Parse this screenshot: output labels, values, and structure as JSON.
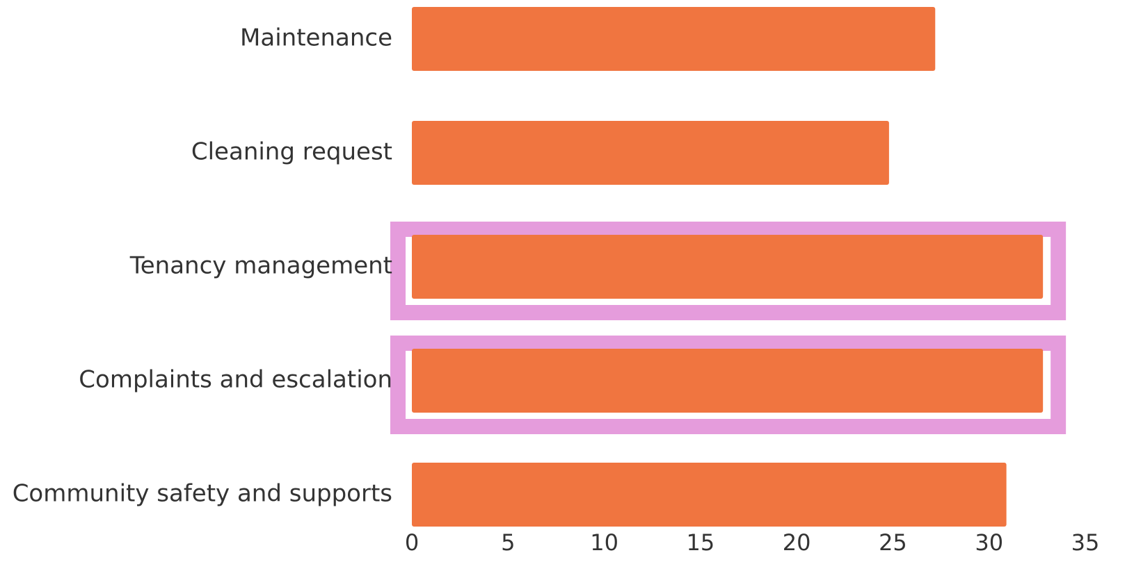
{
  "chart_data": {
    "type": "bar",
    "orientation": "horizontal",
    "categories": [
      "Maintenance",
      "Cleaning request",
      "Tenancy management",
      "Complaints and escalation",
      "Community safety and supports"
    ],
    "values": [
      27.2,
      24.8,
      32.8,
      32.8,
      30.9
    ],
    "highlighted": [
      false,
      false,
      true,
      true,
      false
    ],
    "xlim": [
      0,
      35
    ],
    "x_ticks": [
      "0",
      "5",
      "10",
      "15",
      "20",
      "25",
      "30",
      "35"
    ],
    "title": "",
    "xlabel": "",
    "ylabel": "",
    "grid": false,
    "legend": "none",
    "colors": {
      "bar": "#f07540",
      "highlight": "#e59cdc",
      "text": "#333333"
    }
  }
}
